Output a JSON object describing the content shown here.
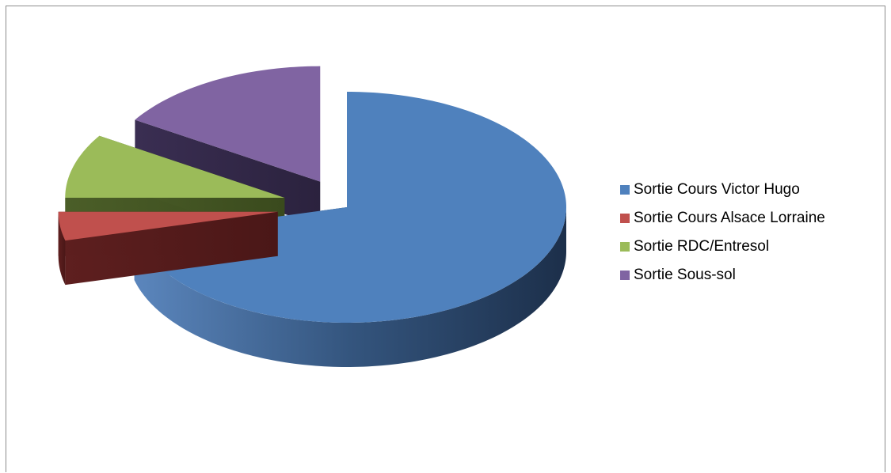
{
  "chart_data": {
    "type": "pie",
    "style": "3d-exploded",
    "categories": [
      "Sortie Cours Victor Hugo",
      "Sortie Cours Alsace Lorraine",
      "Sortie RDC/Entresol",
      "Sortie Sous-sol"
    ],
    "values": [
      71,
      4,
      9,
      16
    ],
    "colors": [
      "#4F81BD",
      "#C0504D",
      "#9BBB59",
      "#8064A2"
    ],
    "legend": "right"
  }
}
